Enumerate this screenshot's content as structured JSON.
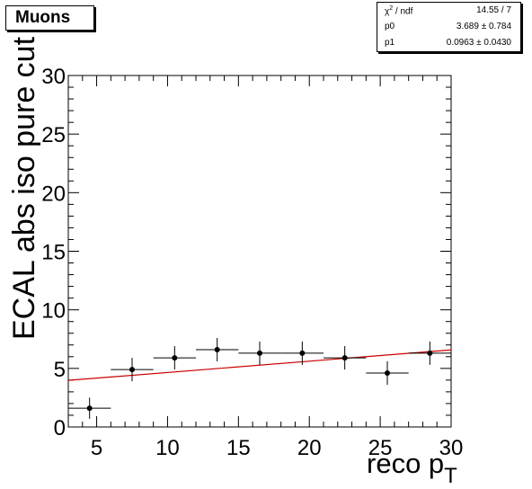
{
  "title": "Muons",
  "stats": {
    "rows": [
      {
        "key": "χ",
        "sup": "2",
        "key_rest": " / ndf",
        "value": "14.55 / 7"
      },
      {
        "key": "p0",
        "sup": "",
        "key_rest": "",
        "value": "3.689 ± 0.784"
      },
      {
        "key": "p1",
        "sup": "",
        "key_rest": "",
        "value": "0.0963 ± 0.0430"
      }
    ]
  },
  "chart_data": {
    "type": "scatter",
    "ylabel": "ECAL abs iso pure cut",
    "xlabel_main": "reco p",
    "xlabel_sub": "T",
    "xlim": [
      3,
      30
    ],
    "ylim": [
      0,
      30
    ],
    "x_ticks": [
      5,
      10,
      15,
      20,
      25,
      30
    ],
    "y_ticks": [
      0,
      5,
      10,
      15,
      20,
      25,
      30
    ],
    "points": [
      {
        "x": 4.5,
        "xerr": 1.5,
        "y": 1.6,
        "yerr": 0.9
      },
      {
        "x": 7.5,
        "xerr": 1.5,
        "y": 4.9,
        "yerr": 1.0
      },
      {
        "x": 10.5,
        "xerr": 1.5,
        "y": 5.9,
        "yerr": 1.0
      },
      {
        "x": 13.5,
        "xerr": 1.5,
        "y": 6.6,
        "yerr": 1.0
      },
      {
        "x": 16.5,
        "xerr": 1.5,
        "y": 6.3,
        "yerr": 1.0
      },
      {
        "x": 19.5,
        "xerr": 1.5,
        "y": 6.3,
        "yerr": 1.0
      },
      {
        "x": 22.5,
        "xerr": 1.5,
        "y": 5.9,
        "yerr": 1.0
      },
      {
        "x": 25.5,
        "xerr": 1.5,
        "y": 4.6,
        "yerr": 1.0
      },
      {
        "x": 28.5,
        "xerr": 1.5,
        "y": 6.3,
        "yerr": 1.0
      }
    ],
    "fit": {
      "type": "linear",
      "p0": 3.689,
      "p1": 0.0963
    },
    "colors": {
      "points": "#000000",
      "fit": "#cc0000"
    },
    "grid": false
  }
}
